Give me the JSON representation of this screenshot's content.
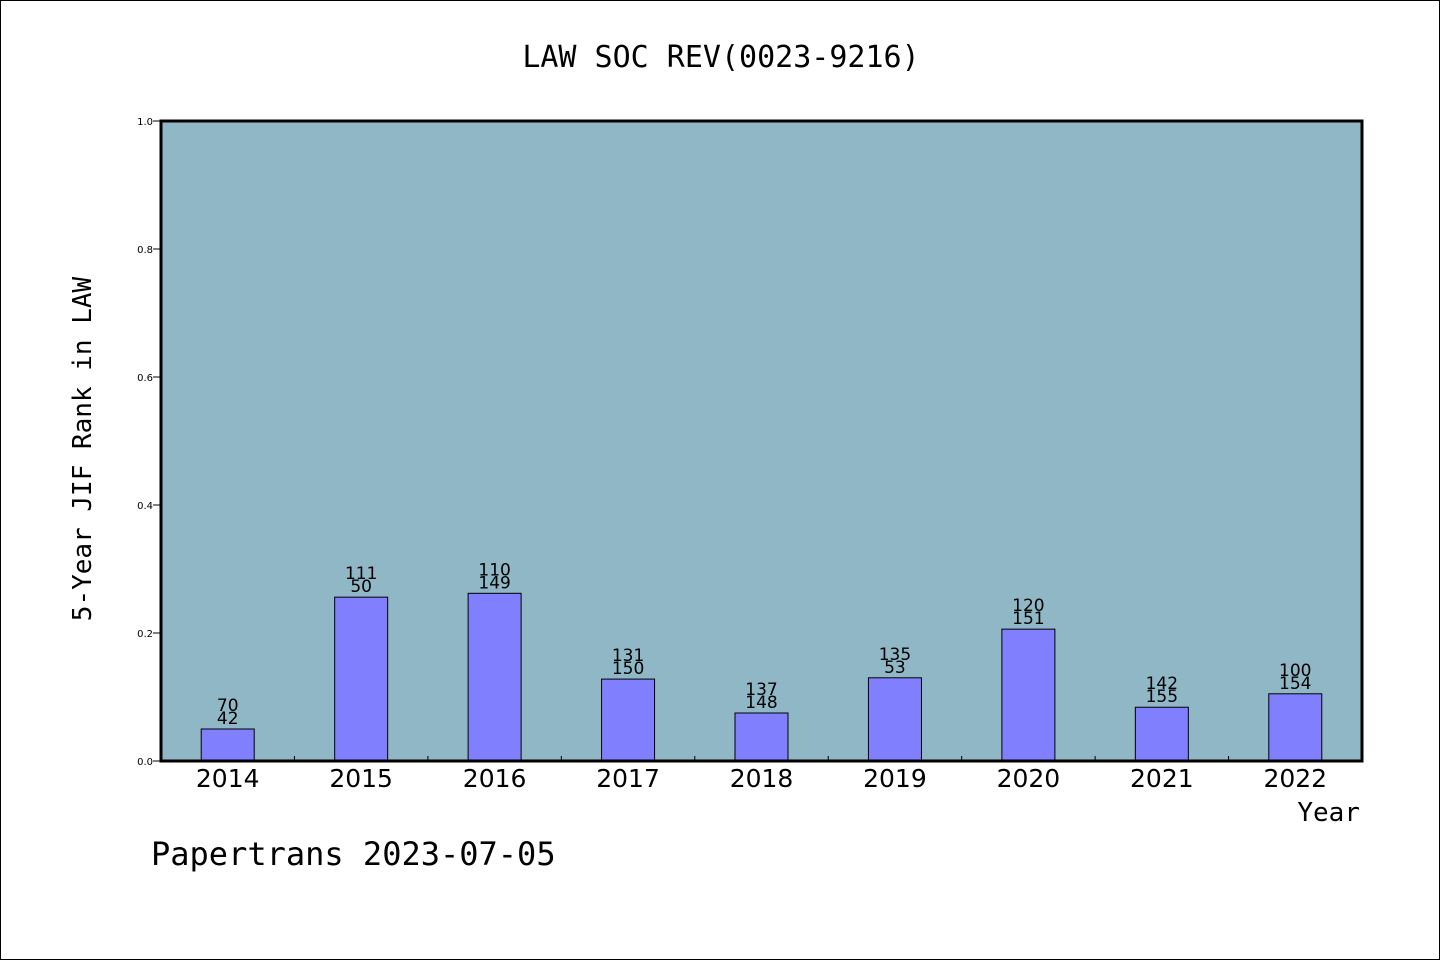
{
  "chart_data": {
    "type": "bar",
    "title": "LAW SOC REV(0023-9216)",
    "xlabel": "Year",
    "ylabel": "5-Year JIF Rank in LAW",
    "ylim": [
      0,
      1.0
    ],
    "yticks": [
      "0.0",
      "0.2",
      "0.4",
      "0.6",
      "0.8",
      "1.0"
    ],
    "grid": false,
    "categories": [
      "2014",
      "2015",
      "2016",
      "2017",
      "2018",
      "2019",
      "2020",
      "2021",
      "2022"
    ],
    "values": [
      0.05,
      0.256,
      0.262,
      0.128,
      0.075,
      0.13,
      0.206,
      0.084,
      0.105
    ],
    "label_top": [
      "70",
      "111",
      "110",
      "131",
      "137",
      "135",
      "120",
      "142",
      "100"
    ],
    "label_bottom": [
      "42",
      "50",
      "149",
      "150",
      "148",
      "53",
      "151",
      "155",
      "154"
    ],
    "colors": {
      "plot_background": "#8fb7c5",
      "bar_fill": "#8080ff",
      "bar_stroke": "#000000"
    }
  },
  "footer": {
    "text": "Papertrans 2023-07-05"
  }
}
